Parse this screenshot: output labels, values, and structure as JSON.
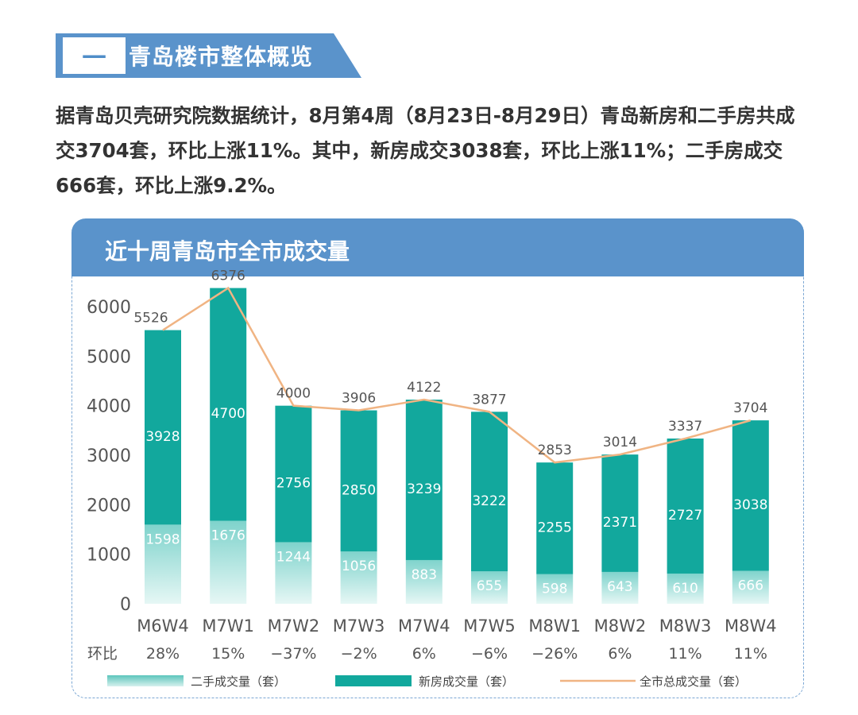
{
  "section": {
    "number": "一",
    "title": "青岛楼市整体概览"
  },
  "paragraph": "据青岛贝壳研究院数据统计，8月第4周（8月23日-8月29日）青岛新房和二手房共成交3704套，环比上涨11%。其中，新房成交3038套，环比上涨11%；二手房成交666套，环比上涨9.2%。",
  "chart_header": "近十周青岛市全市成交量",
  "colors": {
    "header": "#5a93cb",
    "new_house": "#12a89d",
    "second_hand": "#7fd3cc",
    "total_line": "#f0b483"
  },
  "chart_data": {
    "type": "bar",
    "stacked": true,
    "title": "近十周青岛市全市成交量",
    "categories": [
      "M6W4",
      "M7W1",
      "M7W2",
      "M7W3",
      "M7W4",
      "M7W5",
      "M8W1",
      "M8W2",
      "M8W3",
      "M8W4"
    ],
    "series": [
      {
        "name": "二手成交量（套）",
        "values": [
          1598,
          1676,
          1244,
          1056,
          883,
          655,
          598,
          643,
          610,
          666
        ]
      },
      {
        "name": "新房成交量（套）",
        "values": [
          3928,
          4700,
          2756,
          2850,
          3239,
          3222,
          2255,
          2371,
          2727,
          3038
        ]
      },
      {
        "name": "全市总成交量（套）",
        "type": "line",
        "values": [
          5526,
          6376,
          4000,
          3906,
          4122,
          3877,
          2853,
          3014,
          3337,
          3704
        ]
      }
    ],
    "ratio_label": "环比",
    "ratios": [
      "28%",
      "15%",
      "-37%",
      "-2%",
      "6%",
      "-6%",
      "-26%",
      "6%",
      "11%",
      "11%"
    ],
    "yticks": [
      0,
      1000,
      2000,
      3000,
      4000,
      5000,
      6000
    ],
    "ylim": [
      0,
      6000
    ],
    "legend": "bottom",
    "grid": false
  }
}
